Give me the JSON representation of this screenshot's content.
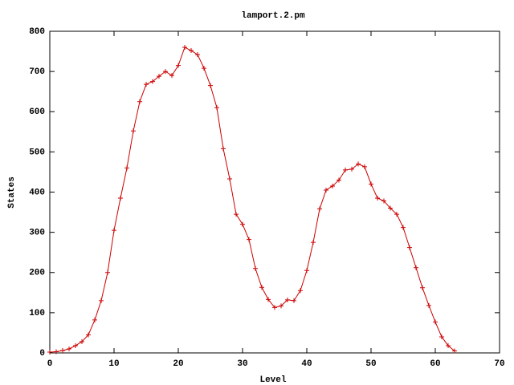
{
  "chart_data": {
    "type": "line",
    "title": "lamport.2.pm",
    "x_label": "Level",
    "y_label": "States",
    "x": [
      0,
      1,
      2,
      3,
      4,
      5,
      6,
      7,
      8,
      9,
      10,
      11,
      12,
      13,
      14,
      15,
      16,
      17,
      18,
      19,
      20,
      21,
      22,
      23,
      24,
      25,
      26,
      27,
      28,
      29,
      30,
      31,
      32,
      33,
      34,
      35,
      36,
      37,
      38,
      39,
      40,
      41,
      42,
      43,
      44,
      45,
      46,
      47,
      48,
      49,
      50,
      51,
      52,
      53,
      54,
      55,
      56,
      57,
      58,
      59,
      60,
      61,
      62,
      63
    ],
    "series": [
      {
        "color": "#cc0000",
        "values": [
          2,
          3,
          6,
          10,
          18,
          28,
          45,
          82,
          130,
          200,
          305,
          385,
          460,
          552,
          625,
          668,
          675,
          688,
          700,
          690,
          715,
          760,
          752,
          742,
          708,
          665,
          610,
          508,
          433,
          345,
          320,
          282,
          210,
          163,
          133,
          113,
          117,
          132,
          130,
          155,
          205,
          275,
          358,
          405,
          415,
          430,
          455,
          457,
          470,
          463,
          420,
          385,
          378,
          360,
          345,
          312,
          262,
          212,
          162,
          118,
          77,
          40,
          18,
          5
        ]
      }
    ],
    "xlim": [
      0,
      70
    ],
    "xticks": [
      0,
      10,
      20,
      30,
      40,
      50,
      60,
      70
    ],
    "ylim": [
      0,
      800
    ],
    "yticks": [
      0,
      100,
      200,
      300,
      400,
      500,
      600,
      700,
      800
    ]
  }
}
